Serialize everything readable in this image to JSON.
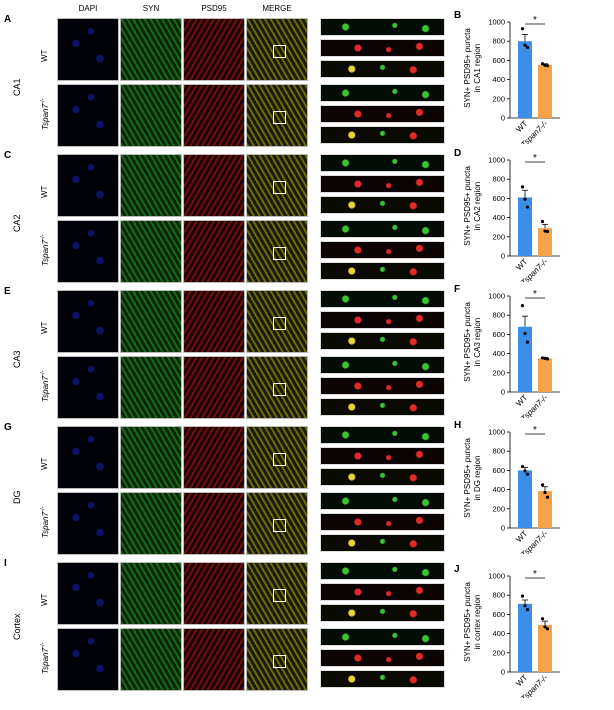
{
  "columns": [
    "DAPI",
    "SYN",
    "PSD95",
    "MERGE"
  ],
  "genotype_wt": "WT",
  "genotype_ko_base": "Tspan7",
  "genotype_ko_sup": "-/-",
  "rows": [
    {
      "letter": "A",
      "region": "CA1",
      "chart_letter": "B"
    },
    {
      "letter": "C",
      "region": "CA2",
      "chart_letter": "D"
    },
    {
      "letter": "E",
      "region": "CA3",
      "chart_letter": "F"
    },
    {
      "letter": "G",
      "region": "DG",
      "chart_letter": "H"
    },
    {
      "letter": "I",
      "region": "Cortex",
      "chart_letter": "J"
    }
  ],
  "colors": {
    "wt_bar": "#3b8fe8",
    "ko_bar": "#f7a24a",
    "dapi": "#1a2cff",
    "syn": "#38c338",
    "psd95": "#e22a2a"
  },
  "chart_data": [
    {
      "type": "bar",
      "title": "",
      "ylabel_line1": "SYN+ PSD95+ puncta",
      "ylabel_line2": "in CA1 region",
      "categories": [
        "WT",
        "Tspan7-/-"
      ],
      "values": [
        800,
        555
      ],
      "errors": [
        70,
        10
      ],
      "points": [
        [
          930,
          760,
          735
        ],
        [
          565,
          550,
          545
        ]
      ],
      "ylim": [
        0,
        1000
      ],
      "yticks": [
        0,
        200,
        400,
        600,
        800,
        1000
      ],
      "significance": "*"
    },
    {
      "type": "bar",
      "title": "",
      "ylabel_line1": "SYN+ PSD95+ puncta",
      "ylabel_line2": "in CA2 region",
      "categories": [
        "WT",
        "Tspan7-/-"
      ],
      "values": [
        610,
        290
      ],
      "errors": [
        75,
        40
      ],
      "points": [
        [
          720,
          590,
          510
        ],
        [
          360,
          260,
          255
        ]
      ],
      "ylim": [
        0,
        1000
      ],
      "yticks": [
        0,
        200,
        400,
        600,
        800,
        1000
      ],
      "significance": "*"
    },
    {
      "type": "bar",
      "title": "",
      "ylabel_line1": "SYN+ PSD95+ puncta",
      "ylabel_line2": "in CA3 region",
      "categories": [
        "WT",
        "Tspan7-/-"
      ],
      "values": [
        680,
        350
      ],
      "errors": [
        110,
        10
      ],
      "points": [
        [
          900,
          610,
          520
        ],
        [
          355,
          350,
          345
        ]
      ],
      "ylim": [
        0,
        1000
      ],
      "yticks": [
        0,
        200,
        400,
        600,
        800,
        1000
      ],
      "significance": "*"
    },
    {
      "type": "bar",
      "title": "",
      "ylabel_line1": "SYN+ PSD95+ puncta",
      "ylabel_line2": "in DG region",
      "categories": [
        "WT",
        "Tspan7-/-"
      ],
      "values": [
        600,
        385
      ],
      "errors": [
        30,
        45
      ],
      "points": [
        [
          640,
          595,
          560
        ],
        [
          450,
          370,
          320
        ]
      ],
      "ylim": [
        0,
        1000
      ],
      "yticks": [
        0,
        200,
        400,
        600,
        800,
        1000
      ],
      "significance": "*"
    },
    {
      "type": "bar",
      "title": "",
      "ylabel_line1": "SYN+ PSD95+ puncta",
      "ylabel_line2": "in cortex region",
      "categories": [
        "WT",
        "Tspan7-/-"
      ],
      "values": [
        710,
        490
      ],
      "errors": [
        40,
        40
      ],
      "points": [
        [
          790,
          690,
          650
        ],
        [
          555,
          470,
          450
        ]
      ],
      "ylim": [
        0,
        1000
      ],
      "yticks": [
        0,
        200,
        400,
        600,
        800,
        1000
      ],
      "significance": "*"
    }
  ]
}
